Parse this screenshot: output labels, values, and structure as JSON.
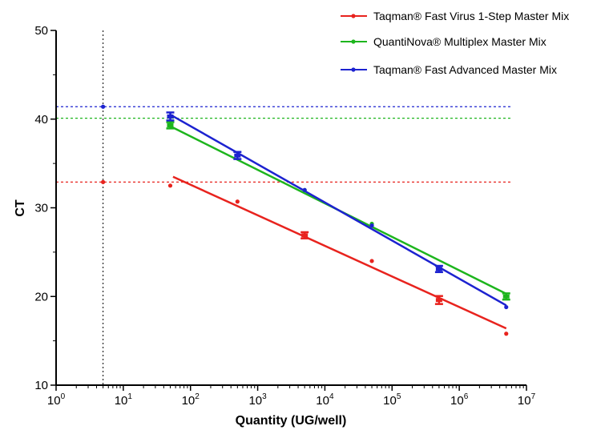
{
  "chart_data": {
    "type": "scatter",
    "xlabel": "Quantity (UG/well)",
    "ylabel": "CT",
    "x_scale": "log",
    "xlim": [
      1,
      10000000
    ],
    "ylim": [
      10,
      50
    ],
    "x_ticks": [
      {
        "base": "10",
        "exp": "0",
        "value": 1
      },
      {
        "base": "10",
        "exp": "1",
        "value": 10
      },
      {
        "base": "10",
        "exp": "2",
        "value": 100
      },
      {
        "base": "10",
        "exp": "3",
        "value": 1000
      },
      {
        "base": "10",
        "exp": "4",
        "value": 10000
      },
      {
        "base": "10",
        "exp": "5",
        "value": 100000
      },
      {
        "base": "10",
        "exp": "6",
        "value": 1000000
      },
      {
        "base": "10",
        "exp": "7",
        "value": 10000000
      }
    ],
    "y_ticks": [
      "10",
      "20",
      "30",
      "40",
      "50"
    ],
    "grid": false,
    "legend_position": "top-right",
    "series": [
      {
        "name": "Taqman® Fast Virus 1-Step Master Mix",
        "color": "#e8231e",
        "points": [
          {
            "x": 5,
            "y": 32.9
          },
          {
            "x": 50,
            "y": 32.5
          },
          {
            "x": 500,
            "y": 30.7
          },
          {
            "x": 50000,
            "y": 24.0
          },
          {
            "x": 5000000,
            "y": 15.8
          }
        ],
        "error_points": [
          {
            "x": 5000,
            "y": 26.9,
            "err": 0.35
          },
          {
            "x": 500000,
            "y": 19.6,
            "err": 0.45
          }
        ],
        "fit_line": [
          {
            "x": 55,
            "y": 33.5
          },
          {
            "x": 5000000,
            "y": 16.4
          }
        ],
        "reference_y": 32.9
      },
      {
        "name": "QuantiNova® Multiplex Master Mix",
        "color": "#1db51d",
        "points": [
          {
            "x": 5000,
            "y": 32.0
          },
          {
            "x": 50000,
            "y": 28.2
          }
        ],
        "error_points": [
          {
            "x": 50,
            "y": 39.3,
            "err": 0.35
          },
          {
            "x": 5000000,
            "y": 20.0,
            "err": 0.35
          }
        ],
        "fit_line": [
          {
            "x": 50,
            "y": 39.2
          },
          {
            "x": 5000000,
            "y": 20.3
          }
        ],
        "reference_y": 40.1
      },
      {
        "name": "Taqman® Fast Advanced Master Mix",
        "color": "#1c22d0",
        "points": [
          {
            "x": 5,
            "y": 41.4
          },
          {
            "x": 5000,
            "y": 32.0
          },
          {
            "x": 50000,
            "y": 28.0
          },
          {
            "x": 5000000,
            "y": 18.8
          }
        ],
        "error_points": [
          {
            "x": 50,
            "y": 40.3,
            "err": 0.45
          },
          {
            "x": 500,
            "y": 35.9,
            "err": 0.4
          },
          {
            "x": 500000,
            "y": 23.1,
            "err": 0.35
          }
        ],
        "fit_line": [
          {
            "x": 50,
            "y": 40.5
          },
          {
            "x": 5000000,
            "y": 19.0
          }
        ],
        "reference_y": 41.4
      }
    ],
    "reference_x": 5,
    "reference_x_color": "#000000"
  }
}
